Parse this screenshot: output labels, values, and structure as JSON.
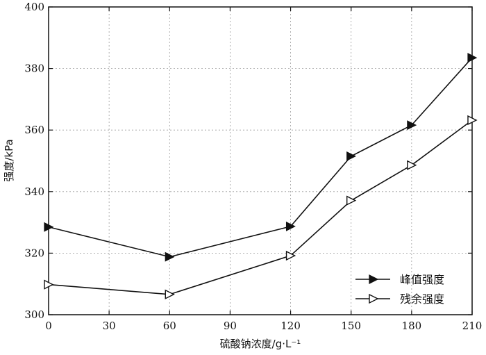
{
  "chart_data": {
    "type": "line",
    "title": "",
    "xlabel": "硫酸钠浓度/g·L⁻¹",
    "ylabel": "强度/kPa",
    "xlim": [
      0,
      210
    ],
    "ylim": [
      300,
      400
    ],
    "x_ticks": [
      "0",
      "30",
      "60",
      "90",
      "120",
      "150",
      "180",
      "210"
    ],
    "y_ticks": [
      "300",
      "320",
      "340",
      "360",
      "380",
      "400"
    ],
    "x": [
      0,
      60,
      120,
      150,
      180,
      210
    ],
    "grid": true,
    "legend_position": "bottom-right",
    "series": [
      {
        "name": "峰值强度",
        "marker": "filled-triangle-right",
        "values": [
          328.5,
          318.8,
          328.7,
          351.5,
          361.6,
          383.5
        ]
      },
      {
        "name": "残余强度",
        "marker": "open-triangle-right",
        "values": [
          309.8,
          306.6,
          319.2,
          337.1,
          348.6,
          363.2
        ]
      }
    ]
  }
}
